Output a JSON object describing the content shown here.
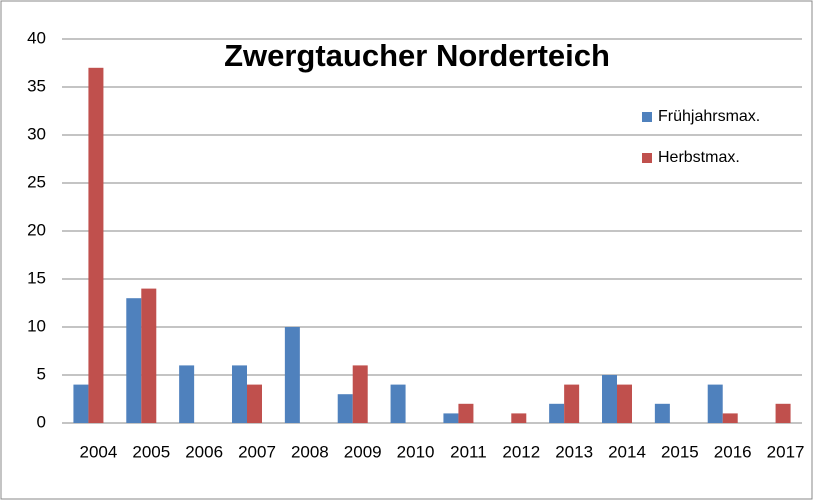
{
  "chart_data": {
    "type": "bar",
    "title": "Zwergtaucher Norderteich",
    "categories": [
      "2004",
      "2005",
      "2006",
      "2007",
      "2008",
      "2009",
      "2010",
      "2011",
      "2012",
      "2013",
      "2014",
      "2015",
      "2016",
      "2017"
    ],
    "series": [
      {
        "name": "Frühjahrsmax.",
        "color": "#4f81bd",
        "values": [
          4,
          13,
          6,
          6,
          10,
          3,
          4,
          1,
          0,
          2,
          5,
          2,
          4,
          0
        ]
      },
      {
        "name": "Herbstmax.",
        "color": "#c0504d",
        "values": [
          37,
          14,
          0,
          4,
          0,
          6,
          0,
          2,
          1,
          4,
          4,
          0,
          1,
          2
        ]
      }
    ],
    "ylim": [
      0,
      40
    ],
    "yticks": [
      0,
      5,
      10,
      15,
      20,
      25,
      30,
      35,
      40
    ],
    "grid": true,
    "legend": "right"
  }
}
